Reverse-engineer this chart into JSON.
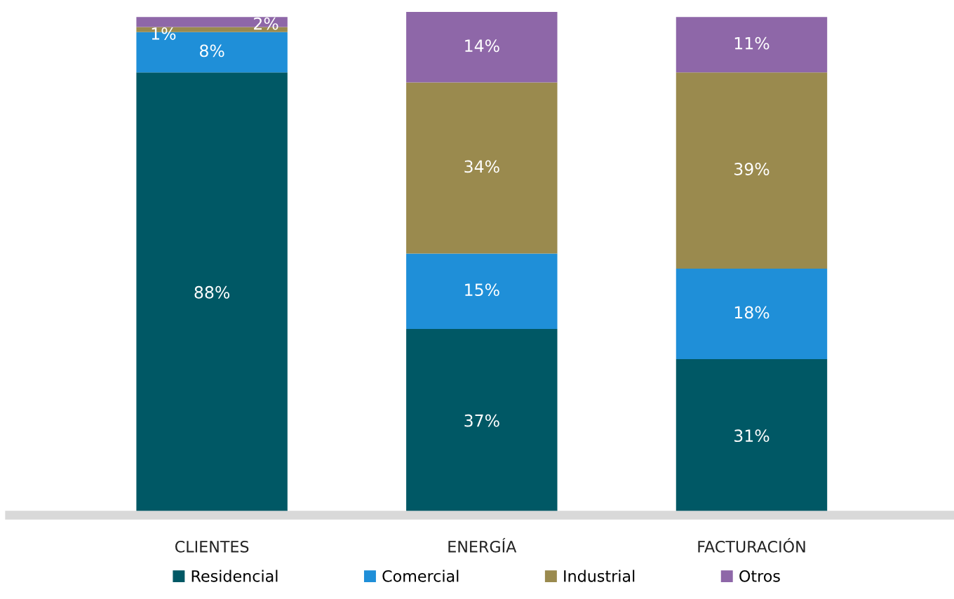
{
  "chart_data": {
    "type": "bar",
    "stacked": true,
    "legend": "bottom",
    "grid": false,
    "categories": [
      "CLIENTES",
      "ENERGÍA",
      "FACTURACIÓN"
    ],
    "series": [
      {
        "name": "Residencial",
        "color": "#005865",
        "values": [
          88,
          37,
          31
        ],
        "value_labels": [
          "88%",
          "37%",
          "31%"
        ]
      },
      {
        "name": "Comercial",
        "color": "#1f8fd8",
        "values": [
          8,
          15,
          18
        ],
        "value_labels": [
          "8%",
          "15%",
          "18%"
        ]
      },
      {
        "name": "Industrial",
        "color": "#9a8a4e",
        "values": [
          1,
          34,
          39
        ],
        "value_labels": [
          "1%",
          "34%",
          "39%"
        ]
      },
      {
        "name": "Otros",
        "color": "#8e67a8",
        "values": [
          2,
          14,
          11
        ],
        "value_labels": [
          "2%",
          "14%",
          "11%"
        ]
      }
    ]
  }
}
